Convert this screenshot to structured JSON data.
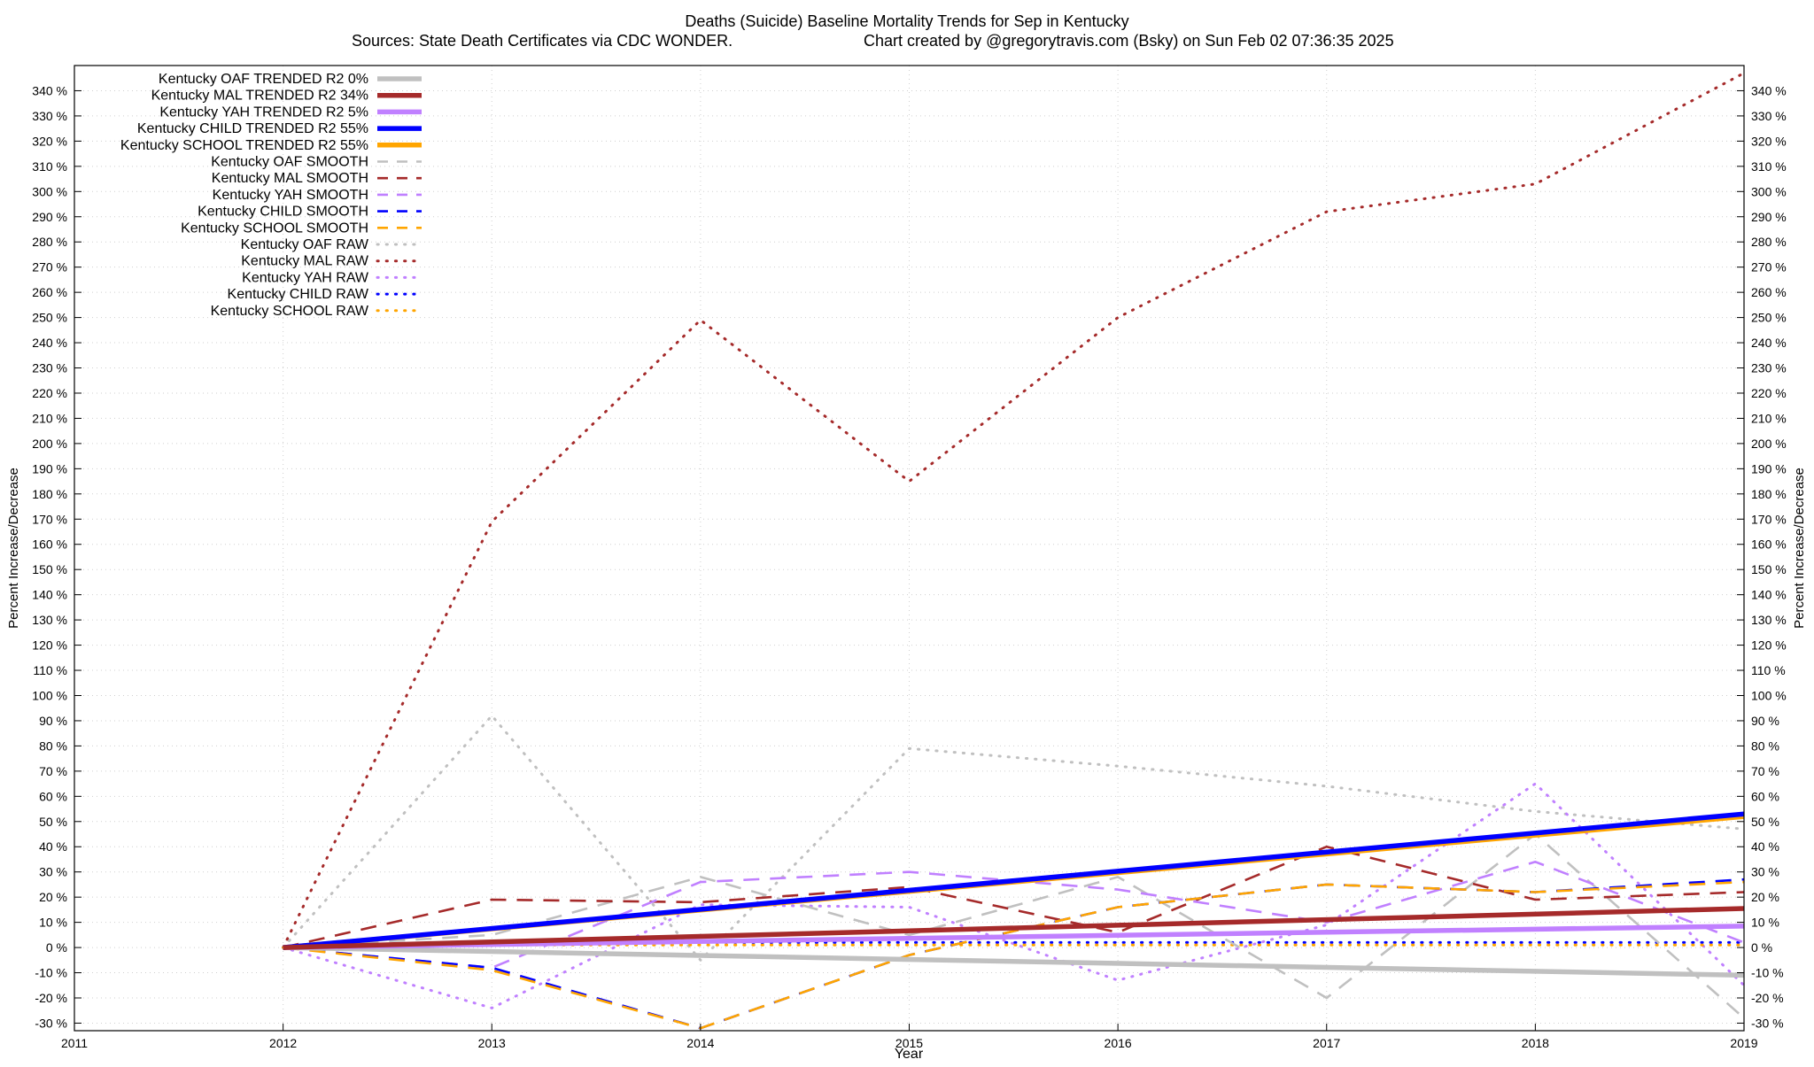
{
  "chart_data": {
    "type": "line",
    "title": "Deaths (Suicide)  Baseline Mortality Trends for Sep in Kentucky",
    "subtitle_left": "Sources: State Death Certificates via CDC WONDER.",
    "subtitle_right": "Chart created by @gregorytravis.com (Bsky) on Sun Feb 02 07:36:35 2025",
    "xlabel": "Year",
    "ylabel": "Percent Increase/Decrease",
    "y2label": "Percent Increase/Decrease",
    "xlim": [
      2011,
      2019
    ],
    "ylim": [
      -33,
      350
    ],
    "x_ticks": [
      2011,
      2012,
      2013,
      2014,
      2015,
      2016,
      2017,
      2018,
      2019
    ],
    "y_ticks": [
      -30,
      -20,
      -10,
      0,
      10,
      20,
      30,
      40,
      50,
      60,
      70,
      80,
      90,
      100,
      110,
      120,
      130,
      140,
      150,
      160,
      170,
      180,
      190,
      200,
      210,
      220,
      230,
      240,
      250,
      260,
      270,
      280,
      290,
      300,
      310,
      320,
      330,
      340
    ],
    "y_tick_suffix": " %",
    "grid": true,
    "legend_position": "top-left",
    "colors": {
      "OAF": "#c0c0c0",
      "MAL": "#a52a2a",
      "YAH": "#c080ff",
      "CHILD": "#0000ff",
      "SCHOOL": "#ffa500"
    },
    "series": [
      {
        "name": "Kentucky OAF TRENDED R2  0%",
        "group": "OAF",
        "style": "trend",
        "x": [
          2012,
          2019
        ],
        "y": [
          0,
          -11
        ]
      },
      {
        "name": "Kentucky MAL TRENDED R2  34%",
        "group": "MAL",
        "style": "trend",
        "x": [
          2012,
          2019
        ],
        "y": [
          0,
          15.5
        ]
      },
      {
        "name": "Kentucky YAH TRENDED R2  5%",
        "group": "YAH",
        "style": "trend",
        "x": [
          2012,
          2019
        ],
        "y": [
          0,
          8.5
        ]
      },
      {
        "name": "Kentucky CHILD TRENDED R2  55%",
        "group": "CHILD",
        "style": "trend",
        "x": [
          2012,
          2019
        ],
        "y": [
          0,
          53
        ]
      },
      {
        "name": "Kentucky SCHOOL TRENDED R2  55%",
        "group": "SCHOOL",
        "style": "trend",
        "x": [
          2012,
          2019
        ],
        "y": [
          0,
          52
        ]
      },
      {
        "name": "Kentucky OAF SMOOTH",
        "group": "OAF",
        "style": "smooth",
        "x": [
          2012,
          2013,
          2014,
          2015,
          2016,
          2017,
          2018,
          2019
        ],
        "y": [
          0,
          5,
          28,
          5,
          28,
          -20,
          45,
          -28
        ]
      },
      {
        "name": "Kentucky MAL SMOOTH",
        "group": "MAL",
        "style": "smooth",
        "x": [
          2012,
          2013,
          2014,
          2015,
          2016,
          2017,
          2018,
          2019
        ],
        "y": [
          0,
          19,
          18,
          24,
          6,
          40,
          19,
          22
        ]
      },
      {
        "name": "Kentucky YAH SMOOTH",
        "group": "YAH",
        "style": "smooth",
        "x": [
          2012,
          2013,
          2014,
          2015,
          2016,
          2017,
          2018,
          2019
        ],
        "y": [
          0,
          -8,
          26,
          30,
          23,
          10,
          34,
          2
        ]
      },
      {
        "name": "Kentucky CHILD SMOOTH",
        "group": "CHILD",
        "style": "smooth",
        "x": [
          2012,
          2013,
          2014,
          2015,
          2016,
          2017,
          2018,
          2019
        ],
        "y": [
          0,
          -8,
          -32,
          -3,
          16,
          25,
          22,
          27
        ]
      },
      {
        "name": "Kentucky SCHOOL SMOOTH",
        "group": "SCHOOL",
        "style": "smooth",
        "x": [
          2012,
          2013,
          2014,
          2015,
          2016,
          2017,
          2018,
          2019
        ],
        "y": [
          0,
          -9,
          -32,
          -3,
          16,
          25,
          22,
          26
        ]
      },
      {
        "name": "Kentucky OAF RAW",
        "group": "OAF",
        "style": "raw",
        "x": [
          2012,
          2013,
          2014,
          2015,
          2016,
          2017,
          2018,
          2019
        ],
        "y": [
          0,
          92,
          -5,
          79,
          72,
          64,
          54,
          47
        ]
      },
      {
        "name": "Kentucky MAL RAW",
        "group": "MAL",
        "style": "raw",
        "x": [
          2012,
          2013,
          2014,
          2015,
          2016,
          2017,
          2018,
          2019
        ],
        "y": [
          0,
          169,
          249,
          185,
          250,
          292,
          303,
          347
        ]
      },
      {
        "name": "Kentucky YAH RAW",
        "group": "YAH",
        "style": "raw",
        "x": [
          2012,
          2013,
          2014,
          2015,
          2016,
          2017,
          2018,
          2019
        ],
        "y": [
          0,
          -24,
          17,
          16,
          -13,
          9,
          65,
          -15
        ]
      },
      {
        "name": "Kentucky CHILD RAW",
        "group": "CHILD",
        "style": "raw",
        "x": [
          2012,
          2013,
          2014,
          2015,
          2016,
          2017,
          2018,
          2019
        ],
        "y": [
          0,
          2,
          2,
          2,
          2,
          2,
          2,
          2
        ]
      },
      {
        "name": "Kentucky SCHOOL RAW",
        "group": "SCHOOL",
        "style": "raw",
        "x": [
          2012,
          2013,
          2014,
          2015,
          2016,
          2017,
          2018,
          2019
        ],
        "y": [
          0,
          1,
          1,
          1,
          1,
          1,
          1,
          1
        ]
      }
    ]
  }
}
